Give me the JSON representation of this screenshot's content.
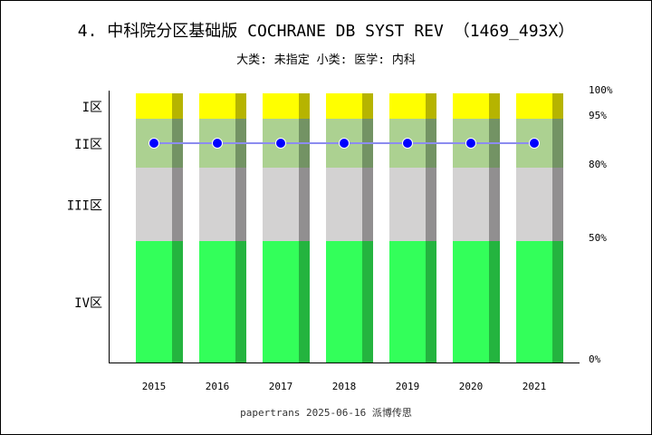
{
  "chart_data": {
    "type": "bar",
    "title": "4.  中科院分区基础版 COCHRANE DB SYST REV （1469_493X）",
    "subtitle": "大类: 未指定 小类: 医学: 内科",
    "footer": "papertrans 2025-06-16 派博传思",
    "categories": [
      "2015",
      "2016",
      "2017",
      "2018",
      "2019",
      "2020",
      "2021"
    ],
    "zones": [
      {
        "label": "IV区",
        "from": 0,
        "to": 50,
        "color": "#33ff5a",
        "shade": "#24b43f"
      },
      {
        "label": "III区",
        "from": 50,
        "to": 80,
        "color": "#d3d2d2",
        "shade": "#918f90"
      },
      {
        "label": "II区",
        "from": 80,
        "to": 95,
        "color": "#acd191",
        "shade": "#739364"
      },
      {
        "label": "I区",
        "from": 95,
        "to": 100,
        "color": "#ffff00",
        "shade": "#b6b400"
      }
    ],
    "right_ticks": [
      "0%",
      "50%",
      "80%",
      "95%",
      "100%"
    ],
    "series": [
      {
        "values": [
          87.5,
          87.5,
          87.5,
          87.5,
          87.5,
          87.5,
          87.5
        ],
        "color": "#0000ff",
        "line_color": "#8c8cf0"
      }
    ],
    "ylim": [
      0,
      100
    ]
  }
}
